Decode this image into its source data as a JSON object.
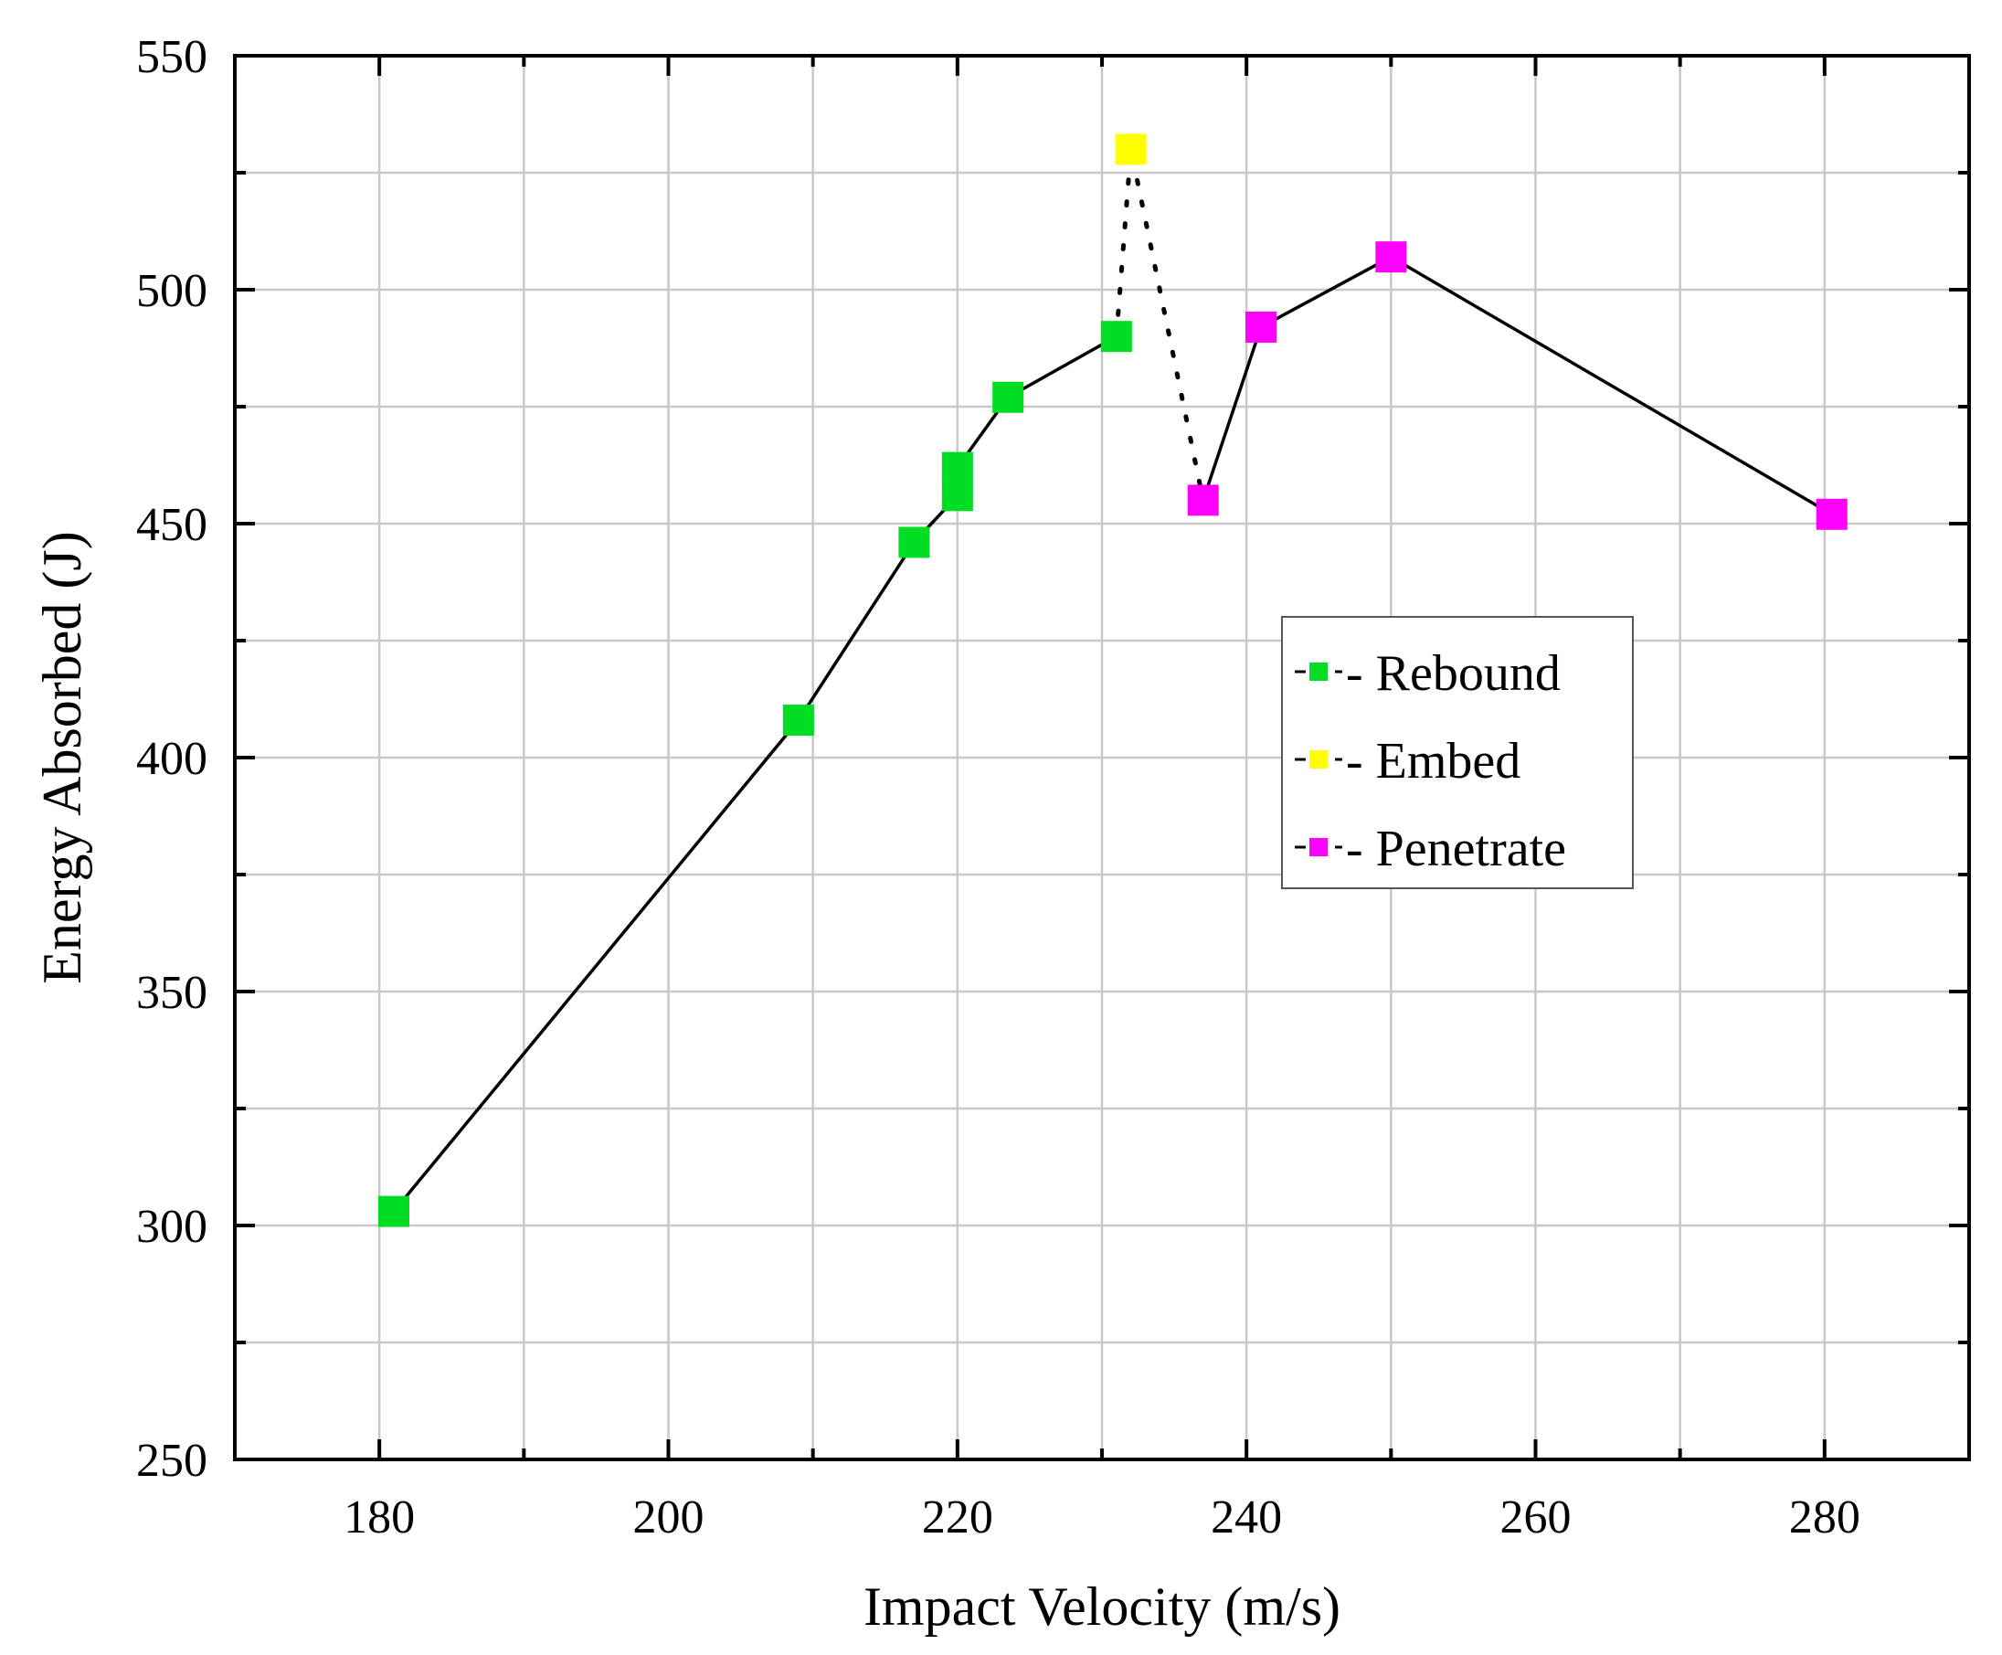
{
  "chart_data": {
    "type": "scatter",
    "xlabel": "Impact Velocity (m/s)",
    "ylabel": "Energy Absorbed (J)",
    "xlim": [
      170,
      290
    ],
    "ylim": [
      250,
      550
    ],
    "x_ticks": [
      180,
      200,
      220,
      240,
      260,
      280
    ],
    "y_ticks": [
      250,
      300,
      350,
      400,
      450,
      500,
      550
    ],
    "x_grid": [
      180,
      190,
      200,
      210,
      220,
      230,
      240,
      250,
      260,
      270,
      280
    ],
    "y_grid": [
      275,
      300,
      325,
      350,
      375,
      400,
      425,
      450,
      475,
      500,
      525
    ],
    "grid": true,
    "legend_position": "center-right",
    "series": [
      {
        "name": "- Rebound",
        "color": "#00dd22",
        "marker": "square",
        "points": [
          {
            "x": 181,
            "y": 303
          },
          {
            "x": 209,
            "y": 408
          },
          {
            "x": 217,
            "y": 446
          },
          {
            "x": 220,
            "y": 456
          },
          {
            "x": 220,
            "y": 462
          },
          {
            "x": 223.5,
            "y": 477
          },
          {
            "x": 231,
            "y": 490
          }
        ]
      },
      {
        "name": "- Embed",
        "color": "#ffff00",
        "marker": "square",
        "points": [
          {
            "x": 232,
            "y": 530
          }
        ]
      },
      {
        "name": "- Penetrate",
        "color": "#ff00ff",
        "marker": "square",
        "points": [
          {
            "x": 237,
            "y": 455
          },
          {
            "x": 241,
            "y": 492
          },
          {
            "x": 250,
            "y": 507
          },
          {
            "x": 280.5,
            "y": 452
          }
        ]
      }
    ],
    "solid_line": [
      {
        "x": 181,
        "y": 303
      },
      {
        "x": 209,
        "y": 408
      },
      {
        "x": 217,
        "y": 446
      },
      {
        "x": 220,
        "y": 456
      },
      {
        "x": 220,
        "y": 462
      },
      {
        "x": 223.5,
        "y": 477
      },
      {
        "x": 231,
        "y": 490
      }
    ],
    "dotted_line": [
      {
        "x": 231,
        "y": 490
      },
      {
        "x": 232,
        "y": 530
      },
      {
        "x": 237,
        "y": 455
      }
    ],
    "solid_line_2": [
      {
        "x": 237,
        "y": 455
      },
      {
        "x": 241,
        "y": 492
      },
      {
        "x": 250,
        "y": 507
      },
      {
        "x": 280.5,
        "y": 452
      }
    ]
  }
}
